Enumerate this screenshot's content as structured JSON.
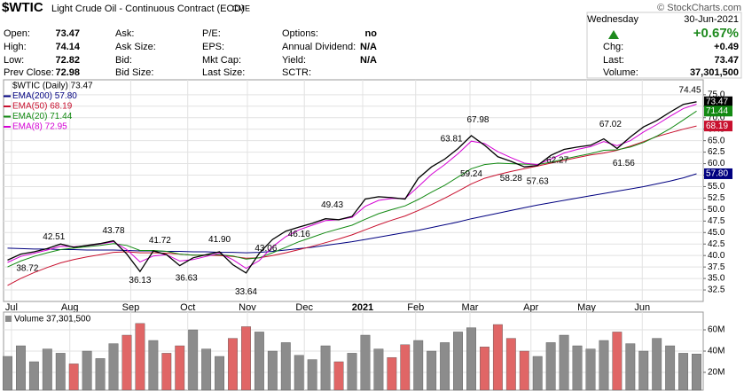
{
  "header": {
    "symbol": "$WTIC",
    "name": "Light Crude Oil - Continuous Contract (EOD)",
    "exchange": "CME",
    "copyright": "© StockCharts.com",
    "columns": [
      [
        {
          "label": "Open:",
          "value": "73.47"
        },
        {
          "label": "High:",
          "value": "74.14"
        },
        {
          "label": "Low:",
          "value": "72.82"
        },
        {
          "label": "Prev Close:",
          "value": "72.98"
        }
      ],
      [
        {
          "label": "Ask:"
        },
        {
          "label": "Ask Size:"
        },
        {
          "label": "Bid:"
        },
        {
          "label": "Bid Size:"
        }
      ],
      [
        {
          "label": "P/E:"
        },
        {
          "label": "EPS:"
        },
        {
          "label": "Mkt Cap:"
        },
        {
          "label": "Last Size:"
        }
      ],
      [
        {
          "label": "Options:",
          "value": "no"
        },
        {
          "label": "Annual Dividend:",
          "value": "N/A"
        },
        {
          "label": "Yield:",
          "value": "N/A"
        },
        {
          "label": "SCTR:"
        }
      ]
    ],
    "weekday": "Wednesday",
    "date": "30-Jun-2021",
    "change_pct": "+0.67%",
    "quote": [
      {
        "label": "Chg:",
        "value": "+0.49"
      },
      {
        "label": "Last:",
        "value": "73.47"
      },
      {
        "label": "Volume:",
        "value": "37,301,500"
      }
    ]
  },
  "chart_data": [
    {
      "type": "line",
      "x": [
        0,
        1,
        2,
        3,
        4,
        5,
        6,
        7,
        8,
        9,
        10,
        11,
        12,
        13,
        14,
        15,
        16,
        17,
        18,
        19,
        20,
        21,
        22,
        23,
        24,
        25,
        26,
        27,
        28,
        29,
        30,
        31,
        32,
        33,
        34,
        35,
        36,
        37,
        38,
        39,
        40,
        41,
        42,
        43,
        44,
        45,
        46,
        47,
        48,
        49,
        50,
        51,
        52
      ],
      "series": [
        {
          "name": "$WTIC (Daily) 73.47",
          "color": "#000000",
          "last_label": "73.47",
          "values": [
            39.0,
            40.3,
            40.8,
            41.5,
            42.5,
            41.8,
            42.2,
            42.6,
            43.2,
            40.3,
            36.5,
            41.0,
            40.2,
            37.8,
            39.5,
            40.2,
            40.8,
            38.0,
            36.2,
            40.5,
            43.5,
            45.3,
            46.2,
            47.0,
            48.0,
            47.8,
            48.5,
            52.3,
            52.8,
            52.6,
            52.3,
            56.8,
            59.3,
            61.0,
            63.3,
            66.1,
            64.0,
            61.5,
            60.5,
            59.3,
            59.6,
            61.8,
            63.1,
            63.6,
            64.0,
            65.4,
            63.3,
            65.8,
            68.0,
            69.4,
            71.2,
            72.9,
            73.47
          ]
        },
        {
          "name": "EMA(200) 57.80",
          "color": "#000080",
          "last_label": "57.80",
          "values": [
            41.6,
            41.5,
            41.4,
            41.4,
            41.3,
            41.3,
            41.2,
            41.2,
            41.2,
            41.1,
            41.0,
            41.0,
            40.9,
            40.9,
            40.8,
            40.8,
            40.7,
            40.7,
            40.6,
            40.7,
            40.9,
            41.2,
            41.5,
            41.8,
            42.2,
            42.6,
            43.0,
            43.5,
            44.0,
            44.5,
            45.0,
            45.5,
            46.1,
            46.7,
            47.3,
            48.0,
            48.6,
            49.2,
            49.8,
            50.4,
            51.0,
            51.5,
            52.0,
            52.5,
            53.0,
            53.5,
            54.0,
            54.5,
            55.0,
            55.6,
            56.2,
            56.9,
            57.8
          ]
        },
        {
          "name": "EMA(50) 68.19",
          "color": "#c8102e",
          "last_label": "68.19",
          "values": [
            33.5,
            35.0,
            36.3,
            37.4,
            38.4,
            39.1,
            39.7,
            40.2,
            40.7,
            40.8,
            40.6,
            40.6,
            40.5,
            40.3,
            40.1,
            40.1,
            40.0,
            39.8,
            39.4,
            39.5,
            40.0,
            40.6,
            41.3,
            42.0,
            42.8,
            43.6,
            44.5,
            45.6,
            46.7,
            47.7,
            48.6,
            49.8,
            51.1,
            52.5,
            54.0,
            55.6,
            56.8,
            57.6,
            58.3,
            58.9,
            59.5,
            60.1,
            60.7,
            61.3,
            61.9,
            62.3,
            62.9,
            63.8,
            64.8,
            65.9,
            66.7,
            67.5,
            68.19
          ]
        },
        {
          "name": "EMA(20) 71.44",
          "color": "#138a13",
          "last_label": "71.44",
          "values": [
            37.5,
            38.8,
            39.8,
            40.6,
            41.3,
            41.6,
            41.9,
            42.2,
            42.6,
            42.2,
            41.1,
            41.1,
            40.9,
            40.3,
            40.1,
            40.1,
            40.2,
            39.9,
            39.2,
            39.5,
            40.6,
            41.8,
            43.0,
            44.0,
            45.0,
            45.8,
            46.6,
            47.9,
            49.1,
            50.0,
            50.8,
            52.2,
            53.8,
            55.3,
            57.1,
            58.9,
            59.8,
            60.1,
            60.0,
            59.9,
            59.8,
            60.3,
            61.0,
            61.6,
            62.2,
            62.9,
            63.0,
            63.6,
            64.6,
            66.0,
            67.6,
            69.5,
            71.44
          ]
        },
        {
          "name": "EMA(8) 72.95",
          "color": "#d400d4",
          "values": [
            38.5,
            39.8,
            40.5,
            41.2,
            42.0,
            41.9,
            42.1,
            42.5,
            43.0,
            41.3,
            38.6,
            39.9,
            40.2,
            38.8,
            39.1,
            39.8,
            40.5,
            39.1,
            37.2,
            38.9,
            41.9,
            44.1,
            45.6,
            46.6,
            47.6,
            47.8,
            48.3,
            50.7,
            52.0,
            52.4,
            52.4,
            55.0,
            57.7,
            59.8,
            62.2,
            64.9,
            64.4,
            62.6,
            61.3,
            60.1,
            59.8,
            61.0,
            62.3,
            63.1,
            63.7,
            64.8,
            63.9,
            65.0,
            66.9,
            68.5,
            70.3,
            72.0,
            72.95
          ]
        }
      ],
      "xlim": [
        -0.3,
        52.5
      ],
      "xticks": [
        {
          "value": 0.3,
          "label": "Jul"
        },
        {
          "value": 4.7,
          "label": "Aug"
        },
        {
          "value": 9.3,
          "label": "Sep"
        },
        {
          "value": 13.6,
          "label": "Oct"
        },
        {
          "value": 18.1,
          "label": "Nov"
        },
        {
          "value": 22.4,
          "label": "Dec"
        },
        {
          "value": 26.8,
          "label": "2021"
        },
        {
          "value": 30.8,
          "label": "Feb"
        },
        {
          "value": 34.9,
          "label": "Mar"
        },
        {
          "value": 39.5,
          "label": "Apr"
        },
        {
          "value": 43.7,
          "label": "May"
        },
        {
          "value": 47.9,
          "label": "Jun"
        }
      ],
      "ylim": [
        30,
        78.25
      ],
      "yticks": [
        32.5,
        {
          "value": 35,
          "label": "35.0"
        },
        37.5,
        {
          "value": 40,
          "label": "40.0"
        },
        42.5,
        {
          "value": 45,
          "label": "45.0"
        },
        47.5,
        {
          "value": 50,
          "label": "50.0"
        },
        52.5,
        {
          "value": 55,
          "label": "55.0"
        },
        57.5,
        {
          "value": 60,
          "label": "60.0"
        },
        62.5,
        {
          "value": 65,
          "label": "65.0"
        },
        67.5,
        {
          "value": 70,
          "label": "70.0"
        },
        72.5,
        {
          "value": 75,
          "label": "75.0"
        }
      ],
      "grid": true,
      "annotations": [
        {
          "x": 3.5,
          "value": 42.51
        },
        {
          "x": 1.5,
          "value": 38.72
        },
        {
          "x": 8,
          "value": 43.78
        },
        {
          "x": 10,
          "value": 36.13
        },
        {
          "x": 11.5,
          "value": 41.72
        },
        {
          "x": 13.5,
          "value": 36.63
        },
        {
          "x": 16,
          "value": 41.9,
          "label": "41.90"
        },
        {
          "x": 18,
          "value": 33.64
        },
        {
          "x": 19.5,
          "value": 43.06
        },
        {
          "x": 22,
          "value": 46.16
        },
        {
          "x": 24.5,
          "value": 49.43
        },
        {
          "x": 33.5,
          "value": 63.81
        },
        {
          "x": 35.5,
          "value": 67.98
        },
        {
          "x": 35,
          "value": 59.24
        },
        {
          "x": 38,
          "value": 58.28
        },
        {
          "x": 40,
          "value": 57.63
        },
        {
          "x": 41.5,
          "value": 62.27
        },
        {
          "x": 45.5,
          "value": 67.02
        },
        {
          "x": 46.5,
          "value": 61.56
        },
        {
          "x": 51.5,
          "value": 74.45
        }
      ]
    },
    {
      "type": "bar",
      "x": [
        0,
        1,
        2,
        3,
        4,
        5,
        6,
        7,
        8,
        9,
        10,
        11,
        12,
        13,
        14,
        15,
        16,
        17,
        18,
        19,
        20,
        21,
        22,
        23,
        24,
        25,
        26,
        27,
        28,
        29,
        30,
        31,
        32,
        33,
        34,
        35,
        36,
        37,
        38,
        39,
        40,
        41,
        42,
        43,
        44,
        45,
        46,
        47,
        48,
        49,
        50,
        51,
        52
      ],
      "series": [
        {
          "name": "Volume 37,301,500",
          "color": "#8c8c8c",
          "down_color": "#e06666",
          "values": [
            35,
            45,
            30,
            42,
            38,
            28,
            40,
            33,
            47,
            55,
            66,
            50,
            38,
            45,
            60,
            42,
            35,
            52,
            63,
            58,
            40,
            48,
            36,
            32,
            45,
            30,
            38,
            55,
            42,
            34,
            46,
            50,
            40,
            48,
            58,
            62,
            44,
            65,
            52,
            40,
            35,
            48,
            55,
            45,
            42,
            50,
            58,
            47,
            40,
            52,
            45,
            38,
            37.3015
          ]
        }
      ],
      "xlim": [
        -0.3,
        52.5
      ],
      "ylim": [
        3.3,
        76.7
      ],
      "yticks": [
        {
          "value": 20,
          "label": "20M"
        },
        {
          "value": 40,
          "label": "40M"
        },
        {
          "value": 60,
          "label": "60M"
        }
      ],
      "grid": true
    }
  ]
}
